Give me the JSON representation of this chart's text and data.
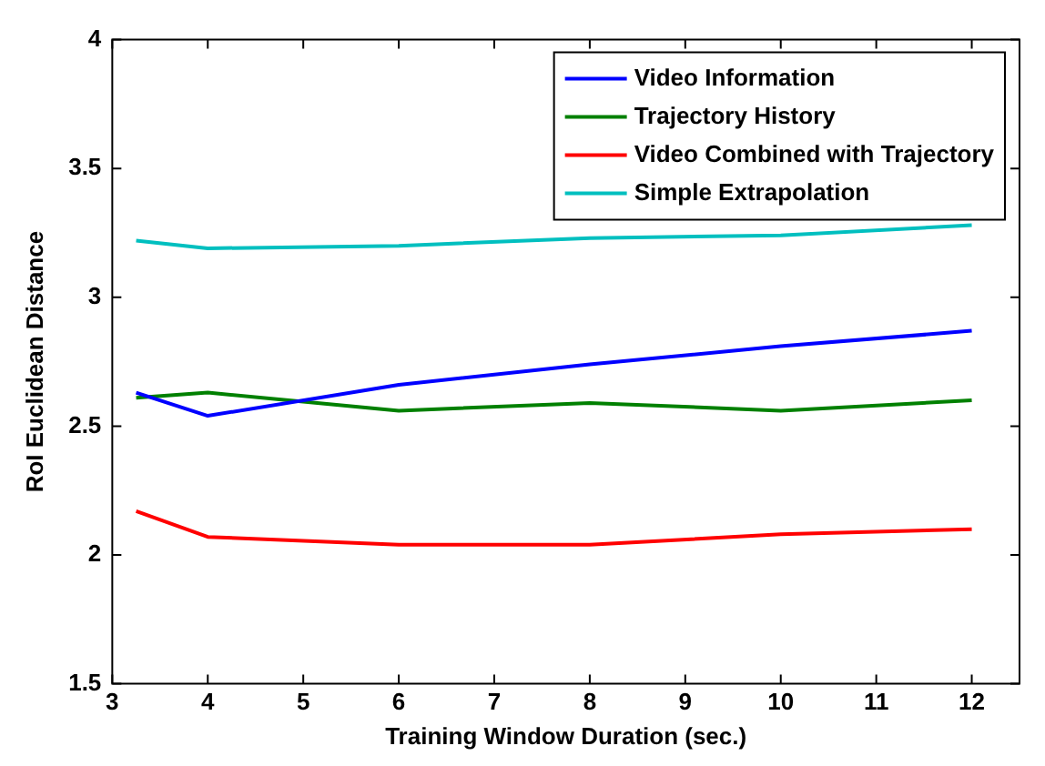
{
  "chart_data": {
    "type": "line",
    "xlabel": "Training Window Duration (sec.)",
    "ylabel": "RoI Euclidean Distance",
    "x": [
      3.25,
      4,
      6,
      8,
      10,
      12
    ],
    "series": [
      {
        "name": "Video Information",
        "color": "#0000ff",
        "values": [
          2.63,
          2.54,
          2.66,
          2.74,
          2.81,
          2.87
        ]
      },
      {
        "name": "Trajectory History",
        "color": "#008000",
        "values": [
          2.61,
          2.63,
          2.56,
          2.59,
          2.56,
          2.6
        ]
      },
      {
        "name": "Video Combined with Trajectory",
        "color": "#ff0000",
        "values": [
          2.17,
          2.07,
          2.04,
          2.04,
          2.08,
          2.1
        ]
      },
      {
        "name": "Simple Extrapolation",
        "color": "#00bfbf",
        "values": [
          3.22,
          3.19,
          3.2,
          3.23,
          3.24,
          3.28
        ]
      }
    ],
    "xlim": [
      3,
      12.5
    ],
    "xticks": [
      3,
      4,
      5,
      6,
      7,
      8,
      9,
      10,
      11,
      12
    ],
    "ylim": [
      1.5,
      4
    ],
    "yticks": [
      1.5,
      2,
      2.5,
      3,
      3.5,
      4
    ],
    "grid": false,
    "legend": "top right",
    "marker": "none",
    "line_style": "solid"
  }
}
